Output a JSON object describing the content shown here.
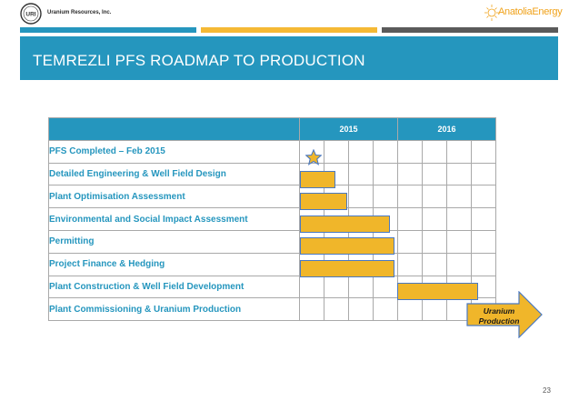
{
  "header": {
    "company_name": "Uranium Resources, Inc.",
    "logo_text": "URI",
    "brand_prefix": "Anatolia",
    "brand_suffix": "Energy"
  },
  "colors": {
    "accent_blue": "#2596be",
    "bar_gold": "#f0b62a",
    "bar_border": "#4a79c2",
    "stripe_gold": "#f5b935",
    "stripe_gray": "#5a5a5a"
  },
  "slide": {
    "title": "TEMREZLI PFS ROADMAP TO PRODUCTION",
    "page_number": "23"
  },
  "table": {
    "years": [
      "2015",
      "2016"
    ],
    "tasks": [
      "PFS Completed – Feb 2015",
      "Detailed Engineering & Well Field Design",
      "Plant Optimisation Assessment",
      "Environmental and Social Impact Assessment",
      "Permitting",
      "Project Finance & Hedging",
      "Plant Construction & Well Field Development",
      "Plant Commissioning & Uranium Production"
    ]
  },
  "milestone": {
    "icon": "star-icon",
    "arrow_label_line1": "Uranium",
    "arrow_label_line2": "Production"
  }
}
